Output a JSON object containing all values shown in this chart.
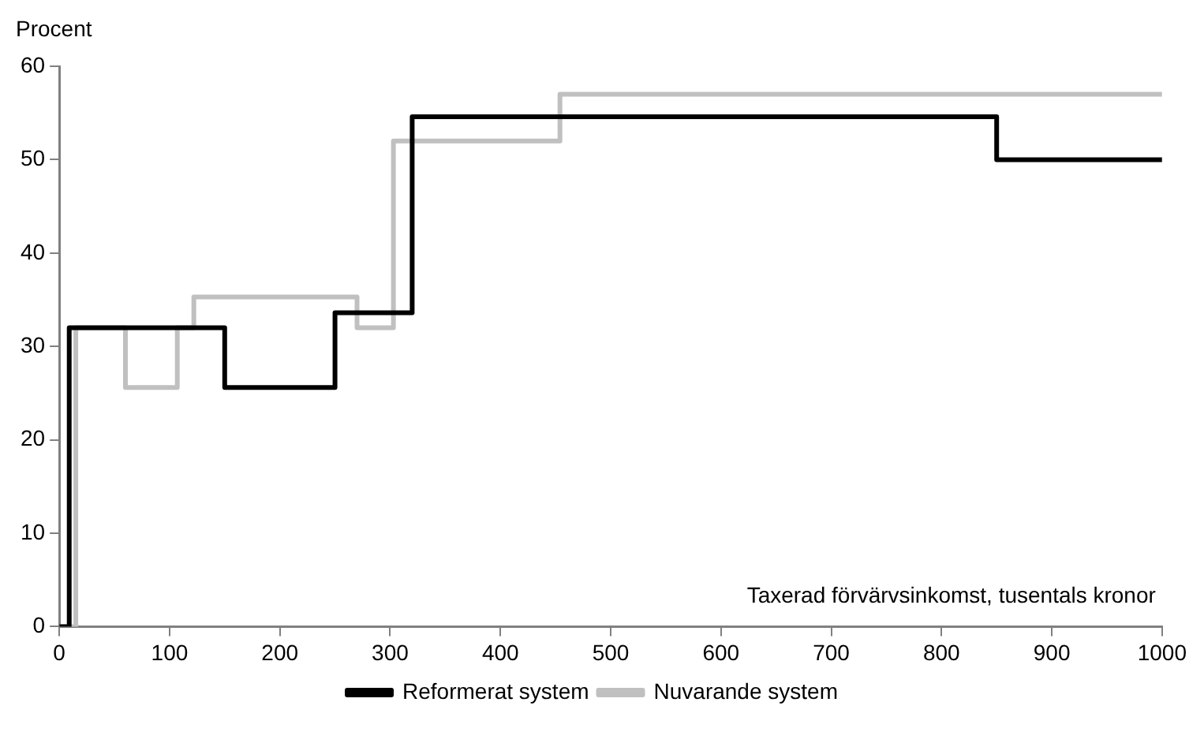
{
  "chart_data": {
    "type": "step",
    "ylabel": "Procent",
    "xlabel": "Taxerad förvärvsinkomst, tusentals kronor",
    "xlim": [
      0,
      1000
    ],
    "xticks": [
      0,
      100,
      200,
      300,
      400,
      500,
      600,
      700,
      800,
      900,
      1000
    ],
    "ylim": [
      0,
      60
    ],
    "yticks": [
      0,
      10,
      20,
      30,
      40,
      50,
      60
    ],
    "grid": false,
    "legend": "bottom",
    "series": [
      {
        "name": "Reformerat system",
        "color": "#000000",
        "x": [
          0,
          9,
          150,
          250,
          320,
          850,
          1000
        ],
        "values": [
          0,
          32,
          25.6,
          33.6,
          54.6,
          50,
          50
        ]
      },
      {
        "name": "Nuvarande system",
        "color": "#c0c0c0",
        "x": [
          0,
          15,
          60,
          107,
          122,
          270,
          303,
          454,
          1000
        ],
        "values": [
          0,
          32,
          25.6,
          32,
          35.3,
          32,
          52,
          57,
          57
        ]
      }
    ]
  }
}
